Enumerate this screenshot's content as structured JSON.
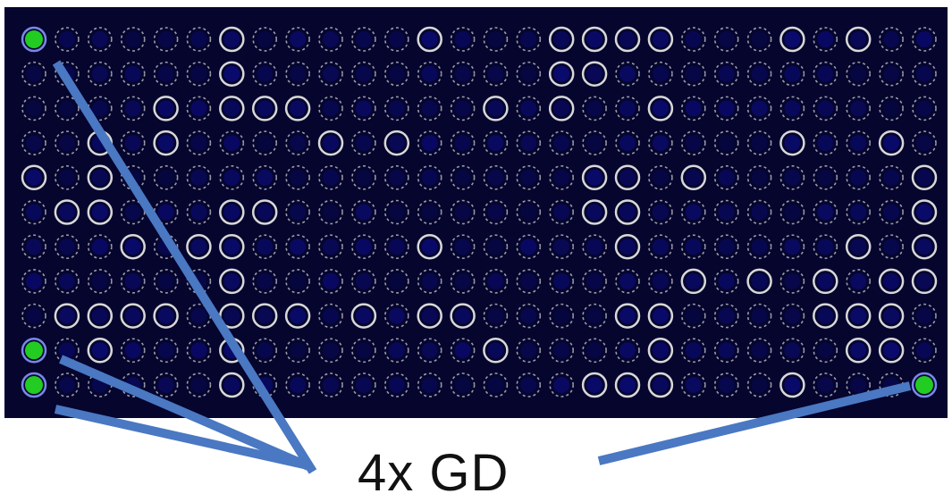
{
  "figure": {
    "label": "4x GD",
    "background_color": "#05052e",
    "spot_fill_color": "#0a0a6e",
    "ring_solid_color": "#d8d8d8",
    "ring_dashed_color": "#9a9aa8",
    "highlight_color": "#22cc22",
    "callout_color": "#4a78c2",
    "grid_rows": 11,
    "grid_cols": 28,
    "highlighted_spots": [
      {
        "row": 1,
        "col": 1
      },
      {
        "row": 10,
        "col": 1
      },
      {
        "row": 11,
        "col": 1
      },
      {
        "row": 11,
        "col": 28
      }
    ],
    "solid_spots": [
      [
        1,
        7
      ],
      [
        1,
        13
      ],
      [
        1,
        17
      ],
      [
        1,
        18
      ],
      [
        1,
        19
      ],
      [
        1,
        20
      ],
      [
        1,
        24
      ],
      [
        1,
        26
      ],
      [
        2,
        7
      ],
      [
        2,
        17
      ],
      [
        2,
        18
      ],
      [
        3,
        5
      ],
      [
        3,
        7
      ],
      [
        3,
        8
      ],
      [
        3,
        9
      ],
      [
        3,
        15
      ],
      [
        3,
        17
      ],
      [
        3,
        20
      ],
      [
        4,
        3
      ],
      [
        4,
        5
      ],
      [
        4,
        10
      ],
      [
        4,
        12
      ],
      [
        4,
        24
      ],
      [
        4,
        27
      ],
      [
        5,
        1
      ],
      [
        5,
        3
      ],
      [
        5,
        18
      ],
      [
        5,
        19
      ],
      [
        5,
        21
      ],
      [
        5,
        28
      ],
      [
        6,
        2
      ],
      [
        6,
        3
      ],
      [
        6,
        7
      ],
      [
        6,
        8
      ],
      [
        6,
        18
      ],
      [
        6,
        19
      ],
      [
        6,
        28
      ],
      [
        7,
        4
      ],
      [
        7,
        6
      ],
      [
        7,
        7
      ],
      [
        7,
        13
      ],
      [
        7,
        19
      ],
      [
        7,
        26
      ],
      [
        7,
        28
      ],
      [
        8,
        7
      ],
      [
        8,
        21
      ],
      [
        8,
        23
      ],
      [
        8,
        25
      ],
      [
        8,
        27
      ],
      [
        8,
        28
      ],
      [
        9,
        2
      ],
      [
        9,
        3
      ],
      [
        9,
        4
      ],
      [
        9,
        5
      ],
      [
        9,
        7
      ],
      [
        9,
        8
      ],
      [
        9,
        9
      ],
      [
        9,
        11
      ],
      [
        9,
        13
      ],
      [
        9,
        14
      ],
      [
        9,
        19
      ],
      [
        9,
        20
      ],
      [
        9,
        25
      ],
      [
        9,
        26
      ],
      [
        9,
        27
      ],
      [
        10,
        3
      ],
      [
        10,
        7
      ],
      [
        10,
        15
      ],
      [
        10,
        20
      ],
      [
        10,
        26
      ],
      [
        10,
        27
      ],
      [
        11,
        7
      ],
      [
        11,
        18
      ],
      [
        11,
        19
      ],
      [
        11,
        20
      ],
      [
        11,
        24
      ]
    ]
  }
}
